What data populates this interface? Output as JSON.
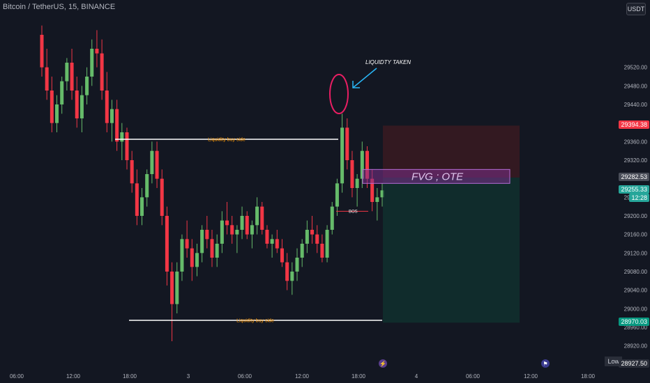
{
  "header": {
    "title": "Bitcoin / TetherUS, 15, BINANCE",
    "currency": "USDT"
  },
  "annotations": {
    "liquidity_taken": "LIQUIDTY TAKEN",
    "liquidity_top": "Liquidity buy side",
    "liquidity_bottom": "Liquidity buy side",
    "bos": "BOS",
    "fvg": "FVG ; OTE"
  },
  "price_tags": {
    "stop": "29394.38",
    "entry": "29282.53",
    "current": "29255.33",
    "countdown": "12:28",
    "target": "28970.03",
    "low_label": "Low",
    "low_value": "28927.50"
  },
  "colors": {
    "background": "#131722",
    "bull": "#66bb6a",
    "bear": "#f23645",
    "liquidity_text": "#ff9800",
    "fvg_fill": "#7b2f8c",
    "stop_zone": "#4a1a22",
    "target_zone": "#0f3a33"
  },
  "chart_data": {
    "type": "candlestick",
    "y_ticks": [
      "29520.00",
      "29480.00",
      "29440.00",
      "29400.00",
      "29360.00",
      "29320.00",
      "29280.00",
      "29240.00",
      "29200.00",
      "29160.00",
      "29120.00",
      "29080.00",
      "29040.00",
      "29000.00",
      "28960.00",
      "28920.00"
    ],
    "x_ticks": [
      "06:00",
      "12:00",
      "18:00",
      "3",
      "06:00",
      "12:00",
      "18:00",
      "4",
      "06:00",
      "12:00",
      "18:00"
    ],
    "candles": [
      [
        29590,
        29610,
        29500,
        29520
      ],
      [
        29520,
        29560,
        29450,
        29470
      ],
      [
        29470,
        29500,
        29380,
        29400
      ],
      [
        29400,
        29460,
        29380,
        29440
      ],
      [
        29440,
        29500,
        29420,
        29490
      ],
      [
        29490,
        29540,
        29470,
        29530
      ],
      [
        29530,
        29560,
        29450,
        29470
      ],
      [
        29470,
        29500,
        29390,
        29410
      ],
      [
        29410,
        29480,
        29380,
        29460
      ],
      [
        29460,
        29520,
        29440,
        29500
      ],
      [
        29500,
        29580,
        29480,
        29560
      ],
      [
        29560,
        29600,
        29520,
        29550
      ],
      [
        29550,
        29580,
        29450,
        29470
      ],
      [
        29470,
        29510,
        29380,
        29400
      ],
      [
        29400,
        29450,
        29360,
        29430
      ],
      [
        29430,
        29450,
        29340,
        29360
      ],
      [
        29360,
        29400,
        29320,
        29380
      ],
      [
        29380,
        29390,
        29300,
        29320
      ],
      [
        29320,
        29340,
        29250,
        29270
      ],
      [
        29270,
        29300,
        29180,
        29200
      ],
      [
        29200,
        29260,
        29180,
        29240
      ],
      [
        29240,
        29300,
        29220,
        29290
      ],
      [
        29290,
        29360,
        29270,
        29340
      ],
      [
        29340,
        29360,
        29260,
        29280
      ],
      [
        29280,
        29300,
        29180,
        29200
      ],
      [
        29200,
        29220,
        29050,
        29080
      ],
      [
        29080,
        29100,
        28930,
        29010
      ],
      [
        29010,
        29100,
        28990,
        29080
      ],
      [
        29080,
        29160,
        29060,
        29150
      ],
      [
        29150,
        29190,
        29110,
        29130
      ],
      [
        29130,
        29150,
        29060,
        29090
      ],
      [
        29090,
        29140,
        29070,
        29120
      ],
      [
        29120,
        29180,
        29100,
        29170
      ],
      [
        29170,
        29200,
        29130,
        29150
      ],
      [
        29150,
        29170,
        29090,
        29110
      ],
      [
        29110,
        29160,
        29090,
        29140
      ],
      [
        29140,
        29210,
        29120,
        29190
      ],
      [
        29190,
        29230,
        29160,
        29180
      ],
      [
        29180,
        29200,
        29140,
        29160
      ],
      [
        29160,
        29180,
        29120,
        29170
      ],
      [
        29170,
        29220,
        29150,
        29200
      ],
      [
        29200,
        29210,
        29150,
        29160
      ],
      [
        29160,
        29190,
        29130,
        29180
      ],
      [
        29180,
        29240,
        29160,
        29220
      ],
      [
        29220,
        29230,
        29160,
        29170
      ],
      [
        29170,
        29180,
        29130,
        29140
      ],
      [
        29140,
        29160,
        29110,
        29150
      ],
      [
        29150,
        29170,
        29120,
        29130
      ],
      [
        29130,
        29150,
        29090,
        29100
      ],
      [
        29100,
        29120,
        29040,
        29060
      ],
      [
        29060,
        29100,
        29030,
        29080
      ],
      [
        29080,
        29130,
        29060,
        29110
      ],
      [
        29110,
        29150,
        29090,
        29140
      ],
      [
        29140,
        29190,
        29120,
        29170
      ],
      [
        29170,
        29200,
        29140,
        29160
      ],
      [
        29160,
        29180,
        29120,
        29140
      ],
      [
        29140,
        29160,
        29100,
        29110
      ],
      [
        29110,
        29180,
        29100,
        29170
      ],
      [
        29170,
        29230,
        29160,
        29220
      ],
      [
        29220,
        29280,
        29200,
        29270
      ],
      [
        29270,
        29420,
        29250,
        29390
      ],
      [
        29390,
        29410,
        29300,
        29320
      ],
      [
        29320,
        29340,
        29240,
        29260
      ],
      [
        29260,
        29290,
        29220,
        29280
      ],
      [
        29280,
        29360,
        29260,
        29340
      ],
      [
        29340,
        29350,
        29260,
        29280
      ],
      [
        29280,
        29300,
        29210,
        29230
      ],
      [
        29230,
        29260,
        29190,
        29240
      ],
      [
        29240,
        29270,
        29220,
        29255
      ]
    ],
    "levels": {
      "liquidity_top": 29365,
      "liquidity_bottom": 28975,
      "bos": 29210,
      "fvg": [
        29270,
        29300
      ],
      "stop_zone": [
        29282.53,
        29394.38
      ],
      "target_zone": [
        28970.03,
        29282.53
      ]
    },
    "ylim": [
      28900,
      29620
    ]
  }
}
